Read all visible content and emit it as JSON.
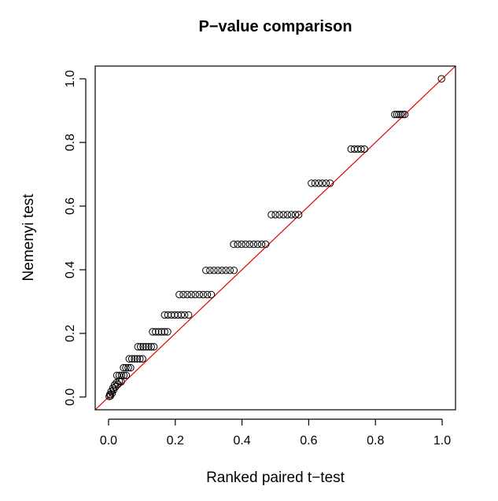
{
  "chart_data": {
    "type": "scatter",
    "title": "P−value comparison",
    "xlabel": "Ranked paired t−test",
    "ylabel": "Nemenyi test",
    "xlim": [
      -0.04,
      1.04
    ],
    "ylim": [
      -0.04,
      1.04
    ],
    "x_ticks": [
      "0.0",
      "0.2",
      "0.4",
      "0.6",
      "0.8",
      "1.0"
    ],
    "y_ticks": [
      "0.0",
      "0.2",
      "0.4",
      "0.6",
      "0.8",
      "1.0"
    ],
    "reference_line": {
      "intercept": 0,
      "slope": 1,
      "color": "#e00000"
    },
    "point_color": "#000000",
    "grid": false,
    "points": [
      {
        "x": 0.002,
        "y": 0.002
      },
      {
        "x": 0.004,
        "y": 0.008
      },
      {
        "x": 0.006,
        "y": 0.004
      },
      {
        "x": 0.008,
        "y": 0.018
      },
      {
        "x": 0.011,
        "y": 0.012
      },
      {
        "x": 0.013,
        "y": 0.028
      },
      {
        "x": 0.015,
        "y": 0.022
      },
      {
        "x": 0.018,
        "y": 0.038
      },
      {
        "x": 0.021,
        "y": 0.032
      },
      {
        "x": 0.024,
        "y": 0.045
      },
      {
        "x": 0.028,
        "y": 0.04
      },
      {
        "x": 0.032,
        "y": 0.05
      },
      {
        "x": 0.038,
        "y": 0.048
      },
      {
        "x": 0.025,
        "y": 0.068
      },
      {
        "x": 0.032,
        "y": 0.068
      },
      {
        "x": 0.039,
        "y": 0.068
      },
      {
        "x": 0.046,
        "y": 0.068
      },
      {
        "x": 0.053,
        "y": 0.068
      },
      {
        "x": 0.045,
        "y": 0.092
      },
      {
        "x": 0.052,
        "y": 0.092
      },
      {
        "x": 0.059,
        "y": 0.092
      },
      {
        "x": 0.066,
        "y": 0.092
      },
      {
        "x": 0.062,
        "y": 0.12
      },
      {
        "x": 0.07,
        "y": 0.12
      },
      {
        "x": 0.078,
        "y": 0.12
      },
      {
        "x": 0.086,
        "y": 0.12
      },
      {
        "x": 0.094,
        "y": 0.12
      },
      {
        "x": 0.102,
        "y": 0.12
      },
      {
        "x": 0.088,
        "y": 0.158
      },
      {
        "x": 0.096,
        "y": 0.158
      },
      {
        "x": 0.104,
        "y": 0.158
      },
      {
        "x": 0.112,
        "y": 0.158
      },
      {
        "x": 0.12,
        "y": 0.158
      },
      {
        "x": 0.128,
        "y": 0.158
      },
      {
        "x": 0.136,
        "y": 0.158
      },
      {
        "x": 0.132,
        "y": 0.205
      },
      {
        "x": 0.141,
        "y": 0.205
      },
      {
        "x": 0.15,
        "y": 0.205
      },
      {
        "x": 0.159,
        "y": 0.205
      },
      {
        "x": 0.168,
        "y": 0.205
      },
      {
        "x": 0.177,
        "y": 0.205
      },
      {
        "x": 0.168,
        "y": 0.258
      },
      {
        "x": 0.178,
        "y": 0.258
      },
      {
        "x": 0.188,
        "y": 0.258
      },
      {
        "x": 0.198,
        "y": 0.258
      },
      {
        "x": 0.208,
        "y": 0.258
      },
      {
        "x": 0.218,
        "y": 0.258
      },
      {
        "x": 0.228,
        "y": 0.258
      },
      {
        "x": 0.24,
        "y": 0.258
      },
      {
        "x": 0.212,
        "y": 0.322
      },
      {
        "x": 0.224,
        "y": 0.322
      },
      {
        "x": 0.236,
        "y": 0.322
      },
      {
        "x": 0.248,
        "y": 0.322
      },
      {
        "x": 0.26,
        "y": 0.322
      },
      {
        "x": 0.272,
        "y": 0.322
      },
      {
        "x": 0.284,
        "y": 0.322
      },
      {
        "x": 0.296,
        "y": 0.322
      },
      {
        "x": 0.308,
        "y": 0.322
      },
      {
        "x": 0.292,
        "y": 0.398
      },
      {
        "x": 0.304,
        "y": 0.398
      },
      {
        "x": 0.316,
        "y": 0.398
      },
      {
        "x": 0.328,
        "y": 0.398
      },
      {
        "x": 0.34,
        "y": 0.398
      },
      {
        "x": 0.352,
        "y": 0.398
      },
      {
        "x": 0.364,
        "y": 0.398
      },
      {
        "x": 0.376,
        "y": 0.398
      },
      {
        "x": 0.375,
        "y": 0.48
      },
      {
        "x": 0.387,
        "y": 0.48
      },
      {
        "x": 0.399,
        "y": 0.48
      },
      {
        "x": 0.411,
        "y": 0.48
      },
      {
        "x": 0.423,
        "y": 0.48
      },
      {
        "x": 0.435,
        "y": 0.48
      },
      {
        "x": 0.447,
        "y": 0.48
      },
      {
        "x": 0.459,
        "y": 0.48
      },
      {
        "x": 0.471,
        "y": 0.48
      },
      {
        "x": 0.488,
        "y": 0.573
      },
      {
        "x": 0.5,
        "y": 0.573
      },
      {
        "x": 0.512,
        "y": 0.573
      },
      {
        "x": 0.524,
        "y": 0.573
      },
      {
        "x": 0.536,
        "y": 0.573
      },
      {
        "x": 0.548,
        "y": 0.573
      },
      {
        "x": 0.56,
        "y": 0.573
      },
      {
        "x": 0.57,
        "y": 0.573
      },
      {
        "x": 0.608,
        "y": 0.672
      },
      {
        "x": 0.619,
        "y": 0.672
      },
      {
        "x": 0.63,
        "y": 0.672
      },
      {
        "x": 0.641,
        "y": 0.672
      },
      {
        "x": 0.652,
        "y": 0.672
      },
      {
        "x": 0.664,
        "y": 0.672
      },
      {
        "x": 0.727,
        "y": 0.779
      },
      {
        "x": 0.737,
        "y": 0.779
      },
      {
        "x": 0.747,
        "y": 0.779
      },
      {
        "x": 0.757,
        "y": 0.779
      },
      {
        "x": 0.767,
        "y": 0.779
      },
      {
        "x": 0.858,
        "y": 0.888
      },
      {
        "x": 0.864,
        "y": 0.888
      },
      {
        "x": 0.87,
        "y": 0.888
      },
      {
        "x": 0.876,
        "y": 0.888
      },
      {
        "x": 0.882,
        "y": 0.888
      },
      {
        "x": 0.888,
        "y": 0.888
      },
      {
        "x": 0.998,
        "y": 1.0
      }
    ]
  }
}
